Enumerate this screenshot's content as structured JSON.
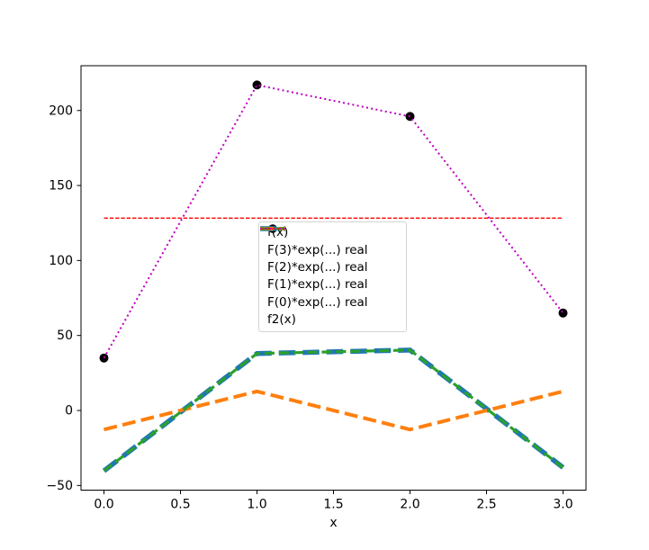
{
  "chart_data": {
    "type": "line",
    "title": "",
    "xlabel": "x",
    "ylabel": "",
    "xlim": [
      -0.15,
      3.15
    ],
    "ylim": [
      -53.11,
      229.86
    ],
    "grid": false,
    "background": "#ffffff",
    "frame_color": "#000000",
    "x": [
      0,
      1,
      2,
      3
    ],
    "xticks": [
      0,
      0.5,
      1,
      1.5,
      2,
      2.5,
      3
    ],
    "xtick_labels": [
      "0.0",
      "0.5",
      "1.0",
      "1.5",
      "2.0",
      "2.5",
      "3.0"
    ],
    "yticks": [
      -50,
      0,
      50,
      100,
      150,
      200
    ],
    "ytick_labels": [
      "−50",
      "0",
      "50",
      "100",
      "150",
      "200"
    ],
    "series": [
      {
        "name": "f(x)",
        "slug": "f-points",
        "kind": "scatter",
        "marker": "circle",
        "markersize": 5,
        "color": "#000000",
        "values": [
          35,
          217,
          196,
          65
        ]
      },
      {
        "name": "F(3)*exp(...) real",
        "slug": "F3-line",
        "kind": "line",
        "color": "#1f77b4",
        "linewidth": 5.5,
        "dash": [
          18.5,
          8
        ],
        "values": [
          -40.25,
          38,
          40.25,
          -38
        ]
      },
      {
        "name": "F(2)*exp(...) real",
        "slug": "F2-line",
        "kind": "line",
        "color": "#ff7f0e",
        "linewidth": 4,
        "dash": [
          14.8,
          6.4
        ],
        "values": [
          -12.75,
          12.75,
          -12.75,
          12.75
        ]
      },
      {
        "name": "F(1)*exp(...) real",
        "slug": "F1-line",
        "kind": "line",
        "color": "#2ca02c",
        "linewidth": 3.2,
        "dash": [
          11.1,
          4.8
        ],
        "values": [
          -40.25,
          38,
          40.25,
          -38
        ]
      },
      {
        "name": "F(0)*exp(...) real",
        "slug": "F0-line",
        "kind": "line",
        "color": "#ff0000",
        "linewidth": 1.3,
        "dash": [
          4.4,
          1.9
        ],
        "values": [
          128.25,
          128.25,
          128.25,
          128.25
        ]
      },
      {
        "name": "f2(x)",
        "slug": "f2-line",
        "kind": "line",
        "color": "#bf00bf",
        "linewidth": 2,
        "dash": [
          2,
          3.3
        ],
        "values": [
          35,
          217,
          196,
          65
        ]
      }
    ],
    "legend": {
      "location": "center",
      "frame": true
    }
  }
}
